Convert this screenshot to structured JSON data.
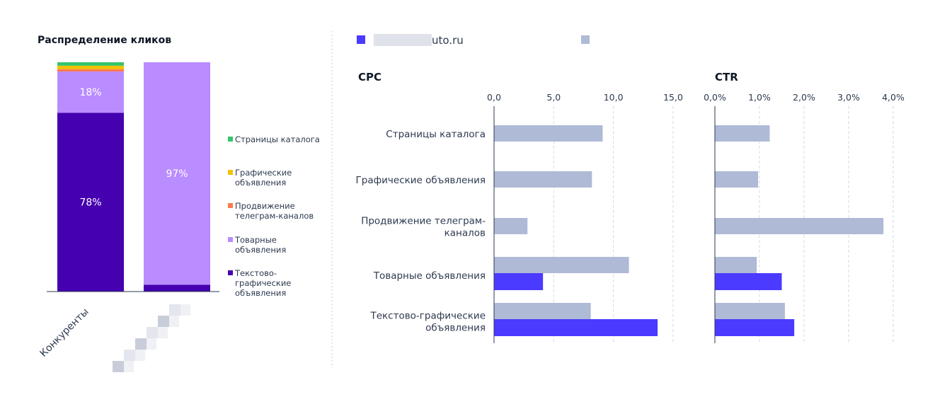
{
  "colors": {
    "text_graphic": "#4500b0",
    "product": "#b98cff",
    "telegram": "#ff7a4d",
    "graphic": "#f2c100",
    "catalog": "#35c46a",
    "site": "#4b3aff",
    "competitors": "#aebad6",
    "divider": "#c9ccd6",
    "grid": "#d5d9e4",
    "axis": "#2d3a4f"
  },
  "legend_top": {
    "site_label": "uto.ru",
    "site_icon": "site-series-swatch",
    "competitors_label": ""
  },
  "chart_data": [
    {
      "type": "bar",
      "stacked": true,
      "title": "Распределение кликов",
      "categories": [
        "Конкуренты",
        ""
      ],
      "series": [
        {
          "name": "Текстово-графические объявления",
          "color_key": "text_graphic",
          "values": [
            78,
            3
          ]
        },
        {
          "name": "Товарные объявления",
          "color_key": "product",
          "values": [
            18,
            97
          ]
        },
        {
          "name": "Продвижение телеграм-каналов",
          "color_key": "telegram",
          "values": [
            1,
            0
          ]
        },
        {
          "name": "Графические объявления",
          "color_key": "graphic",
          "values": [
            1.5,
            0
          ]
        },
        {
          "name": "Страницы каталога",
          "color_key": "catalog",
          "values": [
            1.5,
            0
          ]
        }
      ],
      "data_labels": [
        {
          "series": 0,
          "category": 0,
          "text": "78%"
        },
        {
          "series": 1,
          "category": 0,
          "text": "18%"
        },
        {
          "series": 1,
          "category": 1,
          "text": "97%"
        }
      ],
      "legend_placement": "right",
      "legend_items": [
        {
          "label_lines": [
            "Страницы каталога"
          ],
          "color_key": "catalog"
        },
        {
          "label_lines": [
            "Графические",
            "объявления"
          ],
          "color_key": "graphic"
        },
        {
          "label_lines": [
            "Продвижение",
            "телеграм-каналов"
          ],
          "color_key": "telegram"
        },
        {
          "label_lines": [
            "Товарные",
            "объявления"
          ],
          "color_key": "product"
        },
        {
          "label_lines": [
            "Текстово-",
            "графические",
            "объявления"
          ],
          "color_key": "text_graphic"
        }
      ],
      "ylim": [
        0,
        100
      ]
    },
    {
      "type": "bar",
      "orientation": "horizontal",
      "title": "CPC",
      "categories": [
        [
          "Страницы каталога"
        ],
        [
          "Графические объявления"
        ],
        [
          "Продвижение телеграм-",
          "каналов"
        ],
        [
          "Товарные объявления"
        ],
        [
          "Текстово-графические",
          "объявления"
        ]
      ],
      "series": [
        {
          "key": "competitors",
          "color_key": "competitors",
          "values": [
            9.1,
            8.2,
            2.8,
            11.3,
            8.1
          ]
        },
        {
          "key": "site",
          "color_key": "site",
          "values": [
            null,
            null,
            null,
            4.1,
            13.7
          ]
        }
      ],
      "xlim": [
        0,
        15
      ],
      "xticks": [
        "0,0",
        "5,0",
        "10,0",
        "15,0"
      ],
      "grid": true
    },
    {
      "type": "bar",
      "orientation": "horizontal",
      "title": "CTR",
      "categories": [
        [
          "Страницы каталога"
        ],
        [
          "Графические объявления"
        ],
        [
          "Продвижение телеграм-",
          "каналов"
        ],
        [
          "Товарные объявления"
        ],
        [
          "Текстово-графические",
          "объявления"
        ]
      ],
      "series": [
        {
          "key": "competitors",
          "color_key": "competitors",
          "values": [
            1.23,
            0.97,
            3.78,
            0.94,
            1.57
          ]
        },
        {
          "key": "site",
          "color_key": "site",
          "values": [
            null,
            null,
            null,
            1.5,
            1.78
          ]
        }
      ],
      "xlim": [
        0,
        4
      ],
      "xticks": [
        "0,0%",
        "1,0%",
        "2,0%",
        "3,0%",
        "4,0%"
      ],
      "grid": true
    }
  ]
}
